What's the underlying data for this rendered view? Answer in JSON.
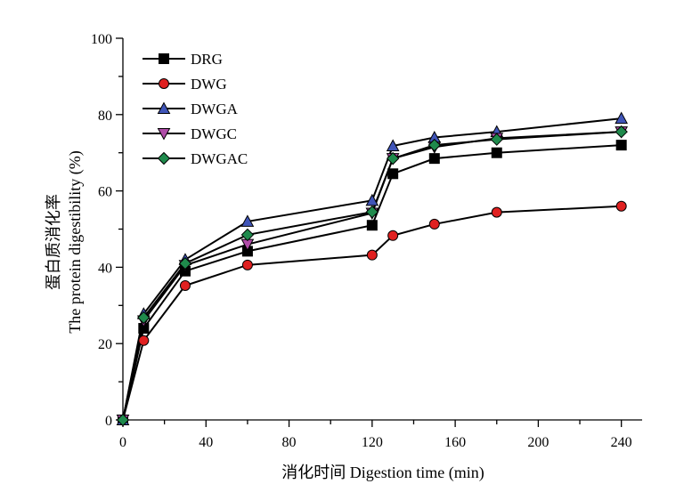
{
  "chart_data": {
    "type": "line",
    "xlabel": "消化时间 Digestion time (min)",
    "ylabel_cn": "蛋白质消化率",
    "ylabel_en": "The protein digestibility (%)",
    "xlim": [
      0,
      250
    ],
    "ylim": [
      0,
      100
    ],
    "x_ticks": [
      0,
      40,
      80,
      120,
      160,
      200,
      240
    ],
    "y_ticks": [
      0,
      20,
      40,
      60,
      80,
      100
    ],
    "grid": false,
    "legend_position": "top-left",
    "x": [
      0,
      10,
      30,
      60,
      120,
      130,
      150,
      180,
      240
    ],
    "series": [
      {
        "name": "DRG",
        "marker": "square",
        "color": "#000000",
        "values": [
          0,
          24.0,
          39.0,
          44.2,
          51.0,
          64.5,
          68.5,
          70.0,
          72.0
        ]
      },
      {
        "name": "DWG",
        "marker": "circle",
        "color": "#e02020",
        "values": [
          0,
          20.8,
          35.2,
          40.6,
          43.2,
          48.3,
          51.3,
          54.4,
          56.0
        ]
      },
      {
        "name": "DWGA",
        "marker": "triangle-up",
        "color": "#4055b8",
        "values": [
          0,
          27.8,
          42.0,
          52.0,
          57.5,
          71.8,
          74.0,
          75.5,
          79.0
        ]
      },
      {
        "name": "DWGC",
        "marker": "triangle-down",
        "color": "#b04ca8",
        "values": [
          0,
          26.0,
          40.5,
          46.0,
          54.2,
          68.5,
          71.5,
          73.8,
          75.5
        ]
      },
      {
        "name": "DWGAC",
        "marker": "diamond",
        "color": "#1f8a4c",
        "values": [
          0,
          26.8,
          41.0,
          48.5,
          54.5,
          68.5,
          72.0,
          73.5,
          75.5
        ]
      }
    ]
  }
}
